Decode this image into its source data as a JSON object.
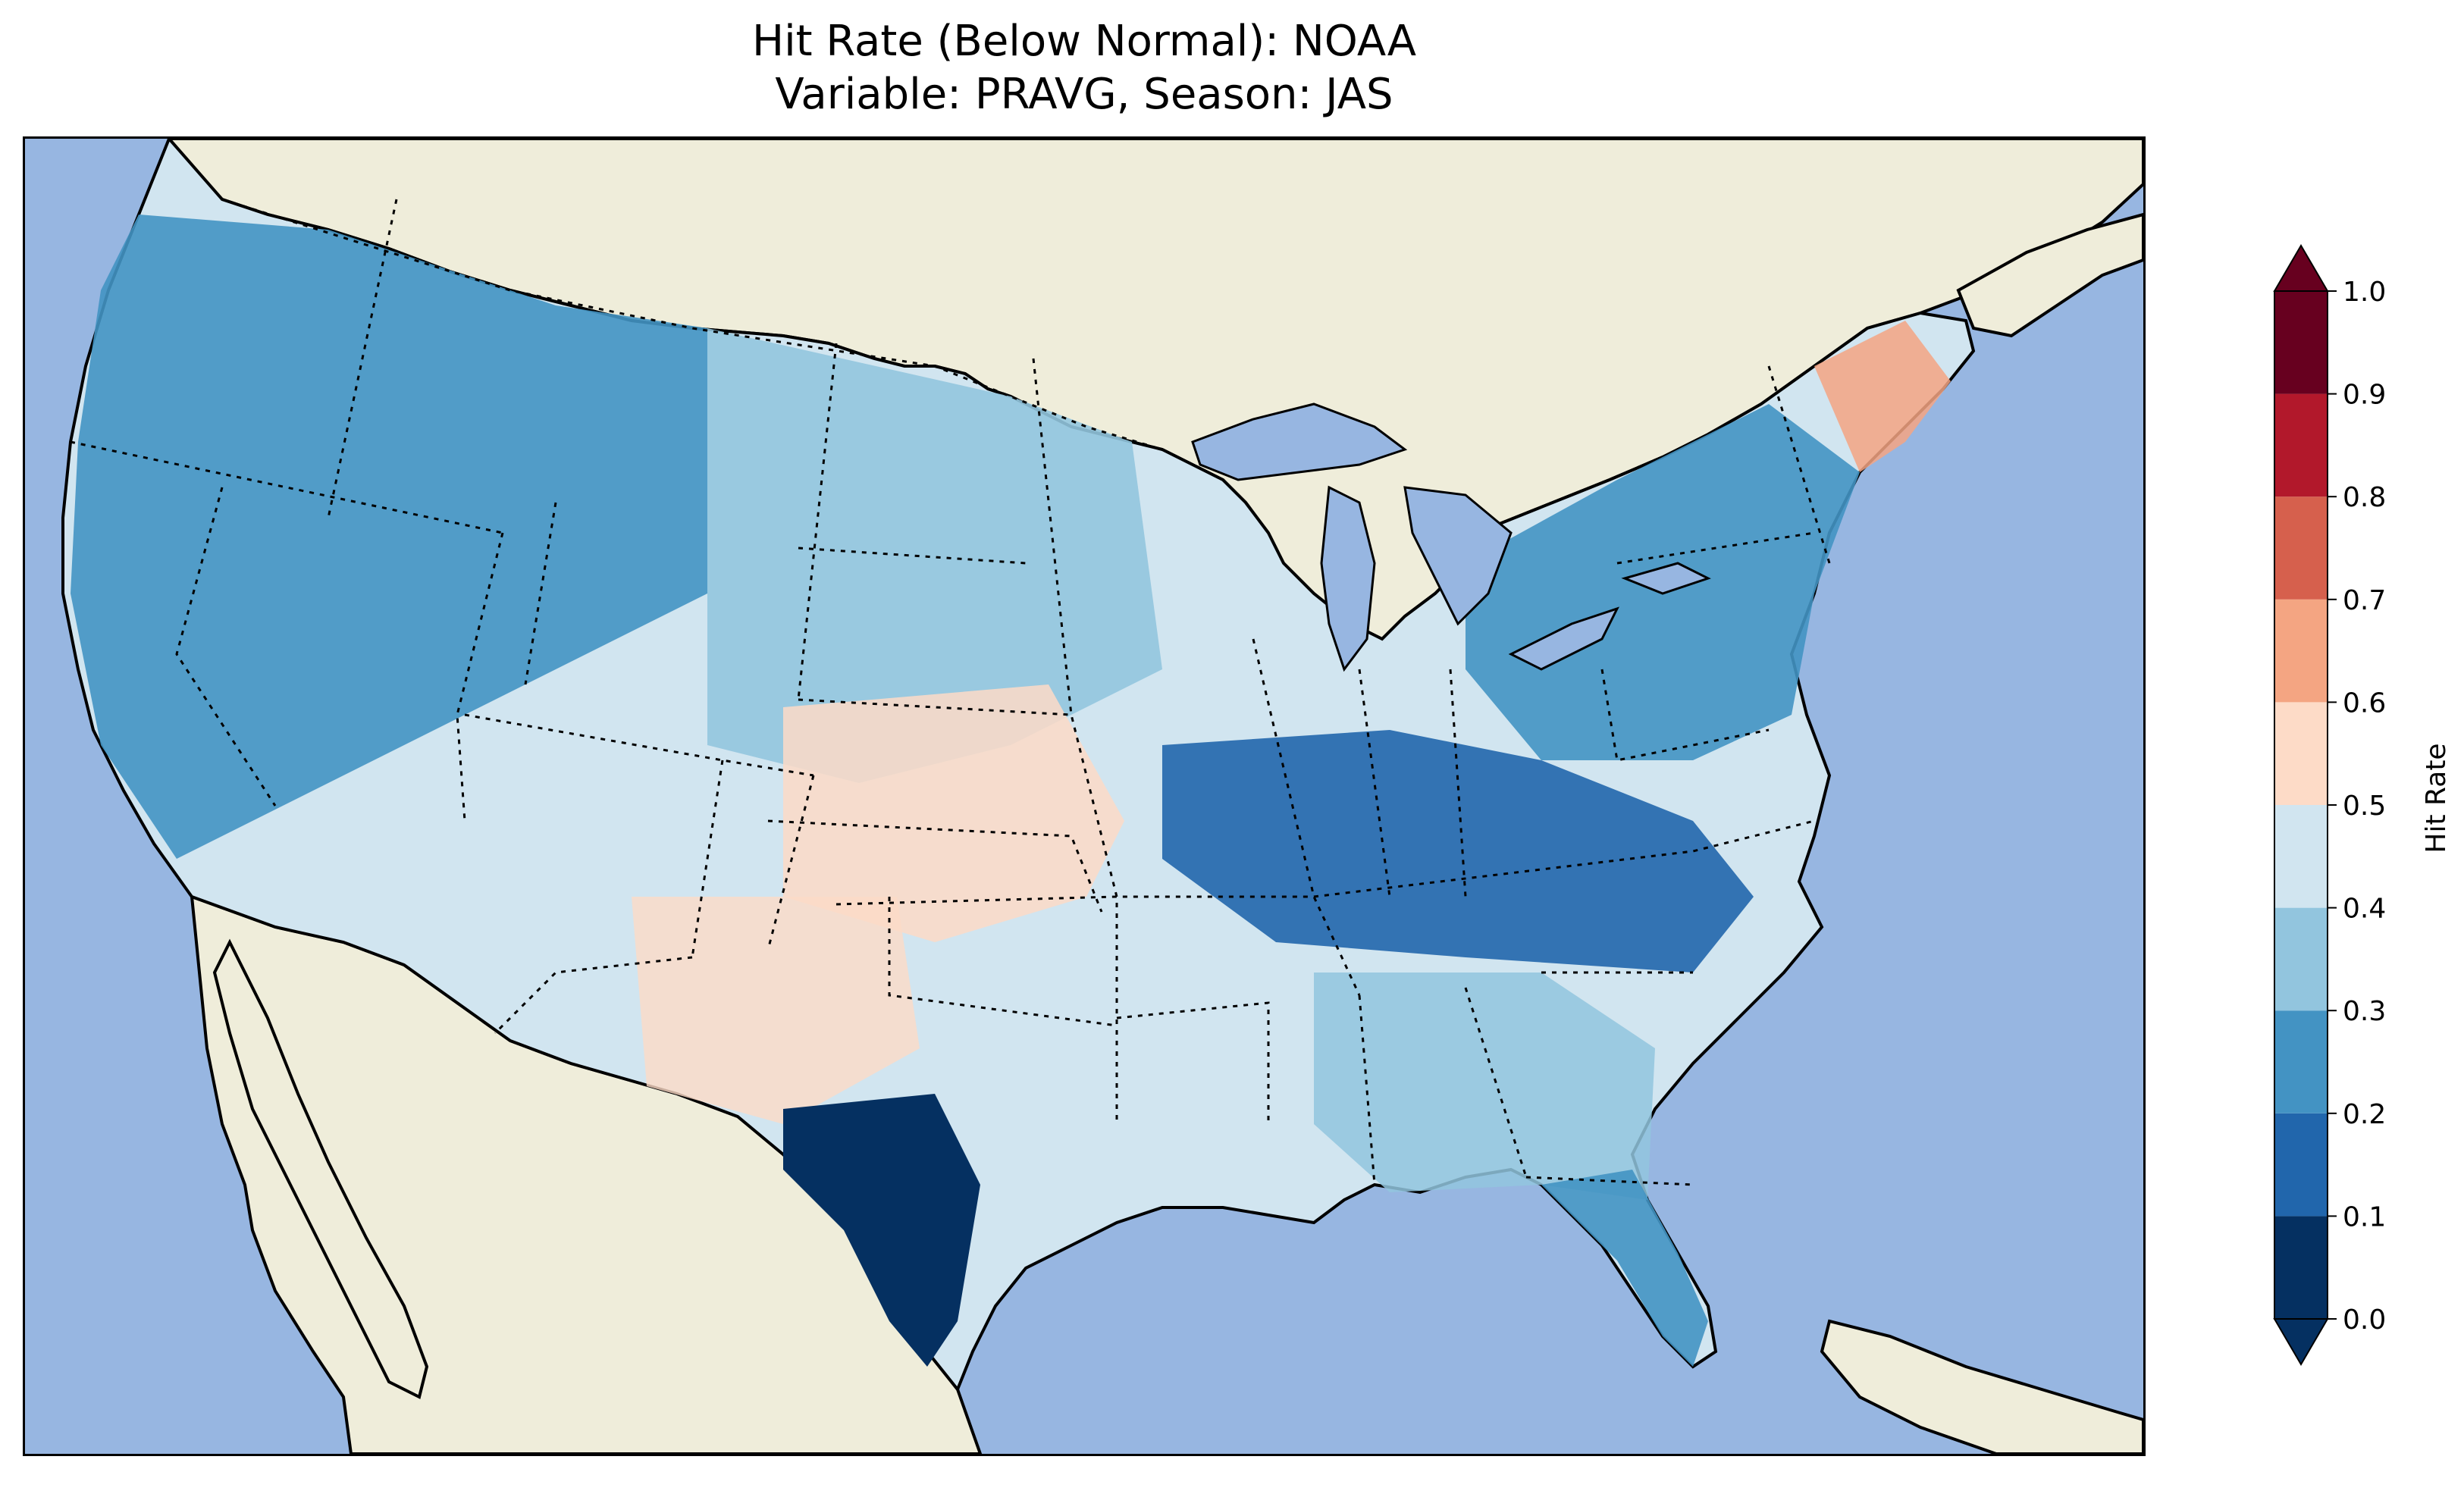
{
  "title": {
    "line1": "Hit Rate (Below Normal): NOAA",
    "line2": "Variable: PRAVG, Season: JAS"
  },
  "colors": {
    "ocean": "#97b6e1",
    "land": "#efedda",
    "lakes": "#97b6e1"
  },
  "colorbar": {
    "label": "Hit Rate",
    "ticks": [
      "0.0",
      "0.1",
      "0.2",
      "0.3",
      "0.4",
      "0.5",
      "0.6",
      "0.7",
      "0.8",
      "0.9",
      "1.0"
    ],
    "under_color": "#053061",
    "over_color": "#67001f",
    "bins": [
      {
        "range": "0.0-0.1",
        "color": "#053061"
      },
      {
        "range": "0.1-0.2",
        "color": "#2166ac"
      },
      {
        "range": "0.2-0.3",
        "color": "#4393c3"
      },
      {
        "range": "0.3-0.4",
        "color": "#92c5de"
      },
      {
        "range": "0.4-0.5",
        "color": "#d1e5f0"
      },
      {
        "range": "0.5-0.6",
        "color": "#fddbc7"
      },
      {
        "range": "0.6-0.7",
        "color": "#f4a582"
      },
      {
        "range": "0.7-0.8",
        "color": "#d6604d"
      },
      {
        "range": "0.8-0.9",
        "color": "#b2182b"
      },
      {
        "range": "0.9-1.0",
        "color": "#67001f"
      }
    ]
  },
  "map": {
    "region": "Contiguous United States",
    "projection": "Lambert Conformal"
  }
}
